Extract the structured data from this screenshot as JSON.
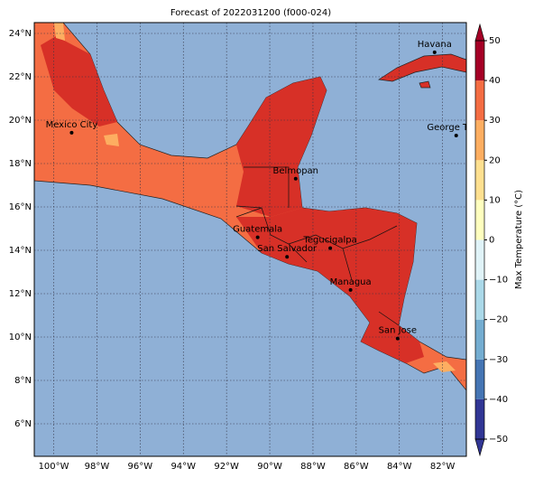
{
  "title": "Forecast of 2022031200 (f000-024)",
  "map": {
    "xlim": [
      -100.9,
      -80.9
    ],
    "ylim": [
      4.5,
      24.5
    ],
    "lon_ticks": [
      {
        "value": -100,
        "label": "100°W"
      },
      {
        "value": -98,
        "label": "98°W"
      },
      {
        "value": -96,
        "label": "96°W"
      },
      {
        "value": -94,
        "label": "94°W"
      },
      {
        "value": -92,
        "label": "92°W"
      },
      {
        "value": -90,
        "label": "90°W"
      },
      {
        "value": -88,
        "label": "88°W"
      },
      {
        "value": -86,
        "label": "86°W"
      },
      {
        "value": -84,
        "label": "84°W"
      },
      {
        "value": -82,
        "label": "82°W"
      }
    ],
    "lat_ticks": [
      {
        "value": 6,
        "label": "6°N"
      },
      {
        "value": 8,
        "label": "8°N"
      },
      {
        "value": 10,
        "label": "10°N"
      },
      {
        "value": 12,
        "label": "12°N"
      },
      {
        "value": 14,
        "label": "14°N"
      },
      {
        "value": 16,
        "label": "16°N"
      },
      {
        "value": 18,
        "label": "18°N"
      },
      {
        "value": 20,
        "label": "20°N"
      },
      {
        "value": 22,
        "label": "22°N"
      },
      {
        "value": 24,
        "label": "24°N"
      }
    ],
    "cities": [
      {
        "name": "Mexico City",
        "lon": -99.17,
        "lat": 19.42
      },
      {
        "name": "Havana",
        "lon": -82.37,
        "lat": 23.13
      },
      {
        "name": "George Town",
        "lon": -81.37,
        "lat": 19.29
      },
      {
        "name": "Belmopan",
        "lon": -88.8,
        "lat": 17.3
      },
      {
        "name": "Guatemala",
        "lon": -90.56,
        "lat": 14.6
      },
      {
        "name": "San Salvador",
        "lon": -89.2,
        "lat": 13.7
      },
      {
        "name": "Tegucigalpa",
        "lon": -87.2,
        "lat": 14.1
      },
      {
        "name": "Managua",
        "lon": -86.26,
        "lat": 12.17
      },
      {
        "name": "San Jose",
        "lon": -84.08,
        "lat": 9.93
      }
    ]
  },
  "colorbar": {
    "label": "Max Temperature (°C)",
    "lim": [
      -50,
      50
    ],
    "colors": [
      "#313695",
      "#4575b4",
      "#74add1",
      "#abd9e9",
      "#e0f3f8",
      "#ffffbf",
      "#fee090",
      "#fdae61",
      "#f46d43",
      "#d73027",
      "#a50026"
    ],
    "ticks": [
      {
        "value": -50,
        "label": "−50"
      },
      {
        "value": -40,
        "label": "−40"
      },
      {
        "value": -30,
        "label": "−30"
      },
      {
        "value": -20,
        "label": "−20"
      },
      {
        "value": -10,
        "label": "−10"
      },
      0,
      10,
      20,
      30,
      40,
      50
    ]
  }
}
